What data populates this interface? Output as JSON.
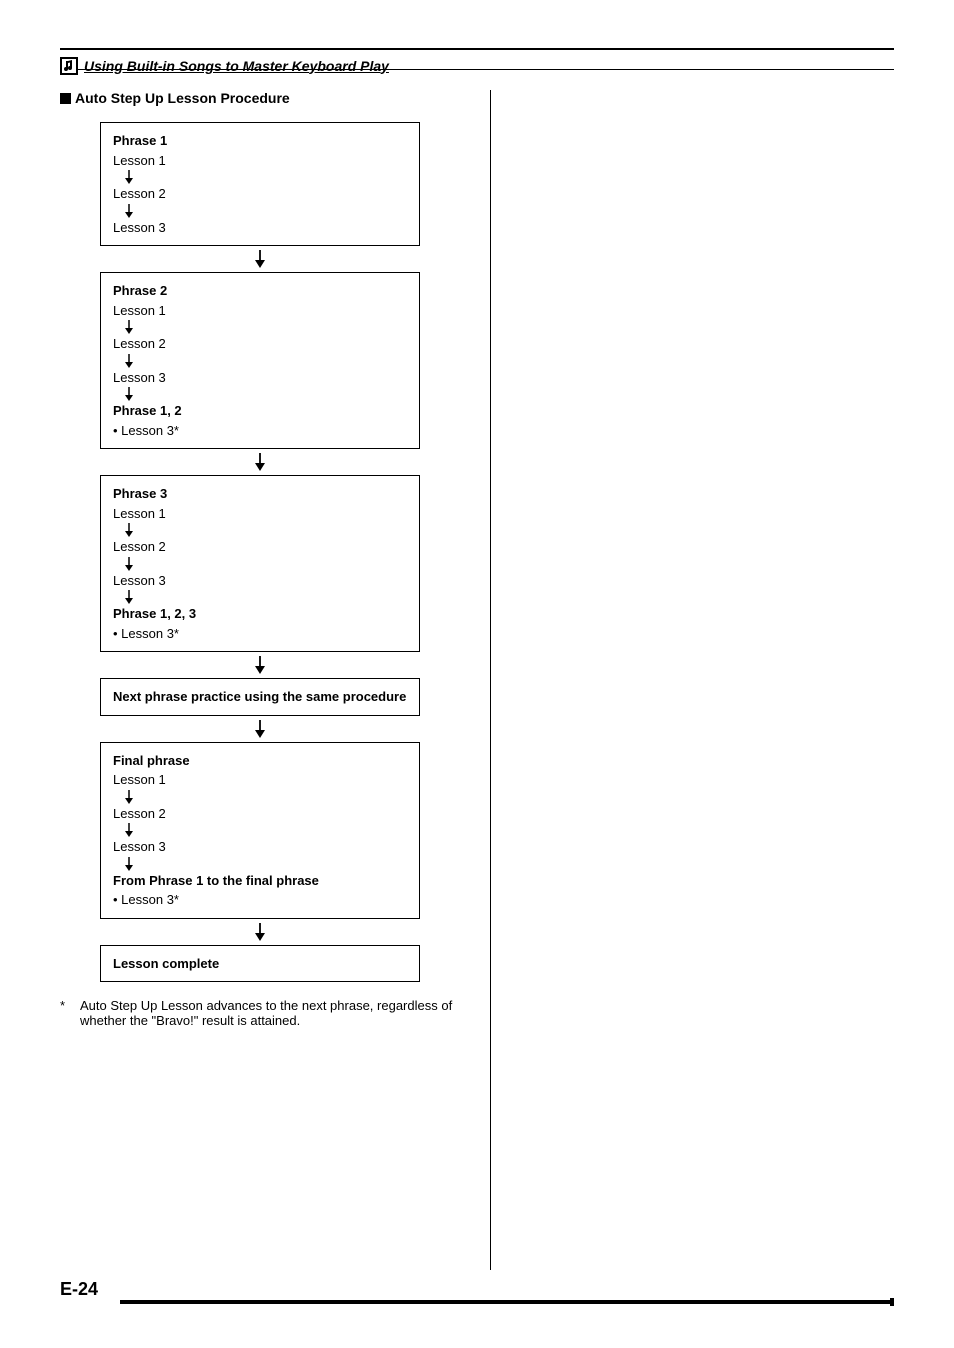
{
  "header": {
    "title": "Using Built-in Songs to Master Keyboard Play"
  },
  "section_title": "Auto Step Up Lesson Procedure",
  "boxes": [
    {
      "lines": [
        {
          "t": "Phrase 1",
          "bold": true
        },
        {
          "t": "Lesson 1"
        },
        {
          "arrow": true
        },
        {
          "t": "Lesson 2"
        },
        {
          "arrow": true
        },
        {
          "t": "Lesson 3"
        }
      ]
    },
    {
      "lines": [
        {
          "t": "Phrase 2",
          "bold": true
        },
        {
          "t": "Lesson 1"
        },
        {
          "arrow": true
        },
        {
          "t": "Lesson 2"
        },
        {
          "arrow": true
        },
        {
          "t": "Lesson 3"
        },
        {
          "arrow": true
        },
        {
          "t": "Phrase 1, 2",
          "bold": true
        },
        {
          "t": "•  Lesson 3*"
        }
      ]
    },
    {
      "lines": [
        {
          "t": "Phrase 3",
          "bold": true
        },
        {
          "t": "Lesson 1"
        },
        {
          "arrow": true
        },
        {
          "t": "Lesson 2"
        },
        {
          "arrow": true
        },
        {
          "t": "Lesson 3"
        },
        {
          "arrow": true
        },
        {
          "t": "Phrase 1, 2, 3",
          "bold": true
        },
        {
          "t": "•  Lesson 3*"
        }
      ]
    },
    {
      "lines": [
        {
          "t": "Next phrase practice using the same procedure",
          "bold": true
        }
      ]
    },
    {
      "lines": [
        {
          "t": "Final phrase",
          "bold": true
        },
        {
          "t": "Lesson 1"
        },
        {
          "arrow": true
        },
        {
          "t": "Lesson 2"
        },
        {
          "arrow": true
        },
        {
          "t": "Lesson 3"
        },
        {
          "arrow": true
        },
        {
          "t": "From Phrase 1 to the final phrase",
          "bold": true
        },
        {
          "t": "•  Lesson 3*"
        }
      ]
    },
    {
      "lines": [
        {
          "t": "Lesson complete",
          "bold": true
        }
      ]
    }
  ],
  "footnote": {
    "marker": "*",
    "text": "Auto Step Up Lesson advances to the next phrase, regardless of whether the \"Bravo!\" result is attained."
  },
  "page_number": "E-24",
  "colors": {
    "text": "#000000",
    "background": "#ffffff"
  }
}
